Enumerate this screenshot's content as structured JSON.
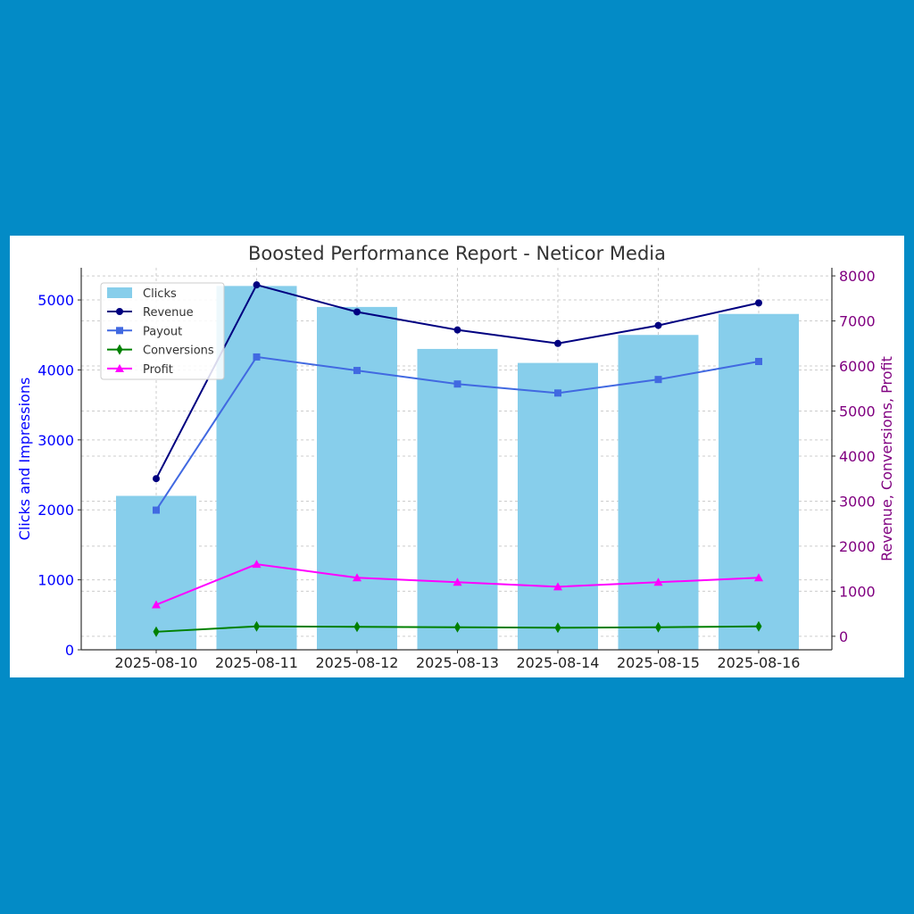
{
  "chart_data": {
    "type": "bar",
    "title": "Boosted Performance Report - Neticor Media",
    "categories": [
      "2025-08-10",
      "2025-08-11",
      "2025-08-12",
      "2025-08-13",
      "2025-08-14",
      "2025-08-15",
      "2025-08-16"
    ],
    "ylabel": "Clicks and Impressions",
    "y2label": "Revenue, Conversions, Profit",
    "ylim": [
      0,
      5460
    ],
    "y2lim": [
      -300,
      8180
    ],
    "yticks": [
      0,
      1000,
      2000,
      3000,
      4000,
      5000
    ],
    "y2ticks": [
      0,
      1000,
      2000,
      3000,
      4000,
      5000,
      6000,
      7000,
      8000
    ],
    "grid": true,
    "legend_position": "top-left",
    "bars": {
      "name": "Clicks",
      "color": "#87ceeb",
      "values": [
        2200,
        5200,
        4900,
        4300,
        4100,
        4500,
        4800
      ]
    },
    "series": [
      {
        "name": "Revenue",
        "color": "#000080",
        "marker": "circle",
        "axis": "right",
        "values": [
          3500,
          7800,
          7200,
          6800,
          6500,
          6900,
          7400
        ]
      },
      {
        "name": "Payout",
        "color": "#4169e1",
        "marker": "square",
        "axis": "right",
        "values": [
          2800,
          6200,
          5900,
          5600,
          5400,
          5700,
          6100
        ]
      },
      {
        "name": "Conversions",
        "color": "#008000",
        "marker": "diamond",
        "axis": "right",
        "values": [
          100,
          220,
          210,
          200,
          190,
          200,
          220
        ]
      },
      {
        "name": "Profit",
        "color": "#ff00ff",
        "marker": "triangle",
        "axis": "right",
        "values": [
          700,
          1600,
          1300,
          1200,
          1100,
          1200,
          1300
        ]
      }
    ],
    "colors": {
      "left_axis": "#0000ff",
      "right_axis": "#800080"
    }
  }
}
